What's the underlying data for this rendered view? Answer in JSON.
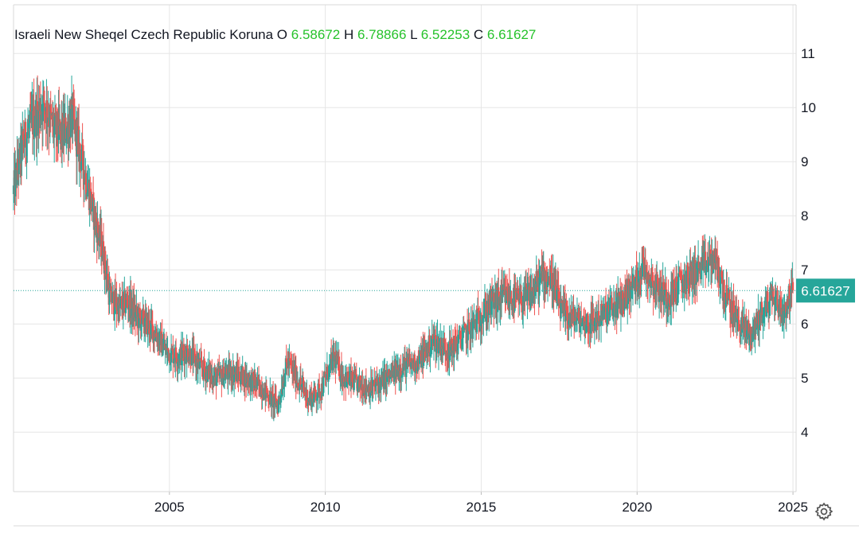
{
  "legend": {
    "symbol": "Israeli New Sheqel Czech Republic Koruna",
    "o_label": "O",
    "o_value": "6.58672",
    "h_label": "H",
    "h_value": "6.78866",
    "l_label": "L",
    "l_value": "6.52253",
    "c_label": "C",
    "c_value": "6.61627"
  },
  "last_price_label": "6.61627",
  "colors": {
    "up": "#26a69a",
    "down": "#ef5350",
    "grid": "#e6e6e6",
    "axis_text": "#131722",
    "ohlc_values": "#26c22b",
    "price_tag_bg": "#26a69a",
    "price_line": "#26a69a"
  },
  "settings_icon": "gear-icon",
  "chart_data": {
    "type": "candlestick",
    "title": "",
    "xlabel": "",
    "ylabel": "",
    "x_range": [
      2000.0,
      2025.1
    ],
    "ylim": [
      2.9,
      11.9
    ],
    "y_ticks": [
      "4",
      "5",
      "6",
      "7",
      "8",
      "9",
      "10",
      "11"
    ],
    "x_ticks": [
      "2005",
      "2010",
      "2015",
      "2020",
      "2025"
    ],
    "grid": true,
    "last_close": 6.61627,
    "path": [
      [
        2000.0,
        8.4
      ],
      [
        2000.3,
        9.3
      ],
      [
        2000.6,
        9.7
      ],
      [
        2001.0,
        10.1
      ],
      [
        2001.3,
        9.6
      ],
      [
        2001.6,
        9.5
      ],
      [
        2001.9,
        9.8
      ],
      [
        2002.3,
        8.8
      ],
      [
        2002.6,
        8.0
      ],
      [
        2002.9,
        7.3
      ],
      [
        2003.1,
        6.5
      ],
      [
        2003.4,
        6.3
      ],
      [
        2003.7,
        6.4
      ],
      [
        2004.0,
        6.1
      ],
      [
        2004.3,
        6.0
      ],
      [
        2004.6,
        5.8
      ],
      [
        2004.9,
        5.5
      ],
      [
        2005.3,
        5.4
      ],
      [
        2005.6,
        5.5
      ],
      [
        2006.0,
        5.2
      ],
      [
        2006.5,
        5.0
      ],
      [
        2007.0,
        5.1
      ],
      [
        2007.5,
        5.0
      ],
      [
        2008.0,
        4.8
      ],
      [
        2008.3,
        4.6
      ],
      [
        2008.5,
        4.5
      ],
      [
        2008.8,
        5.3
      ],
      [
        2009.1,
        5.0
      ],
      [
        2009.5,
        4.6
      ],
      [
        2009.9,
        4.8
      ],
      [
        2010.3,
        5.4
      ],
      [
        2010.6,
        5.0
      ],
      [
        2011.0,
        4.9
      ],
      [
        2011.5,
        4.8
      ],
      [
        2012.0,
        5.0
      ],
      [
        2012.5,
        5.2
      ],
      [
        2013.0,
        5.3
      ],
      [
        2013.5,
        5.7
      ],
      [
        2014.0,
        5.5
      ],
      [
        2014.5,
        5.8
      ],
      [
        2014.8,
        6.0
      ],
      [
        2015.1,
        6.2
      ],
      [
        2015.4,
        6.4
      ],
      [
        2015.8,
        6.5
      ],
      [
        2016.3,
        6.4
      ],
      [
        2016.7,
        6.6
      ],
      [
        2017.0,
        6.9
      ],
      [
        2017.3,
        6.8
      ],
      [
        2017.6,
        6.2
      ],
      [
        2018.0,
        6.1
      ],
      [
        2018.5,
        6.0
      ],
      [
        2019.0,
        6.2
      ],
      [
        2019.5,
        6.4
      ],
      [
        2020.0,
        6.8
      ],
      [
        2020.2,
        7.1
      ],
      [
        2020.6,
        6.7
      ],
      [
        2021.0,
        6.5
      ],
      [
        2021.5,
        6.8
      ],
      [
        2022.0,
        7.0
      ],
      [
        2022.5,
        7.2
      ],
      [
        2022.8,
        6.6
      ],
      [
        2023.0,
        6.3
      ],
      [
        2023.3,
        6.0
      ],
      [
        2023.7,
        5.8
      ],
      [
        2024.0,
        6.2
      ],
      [
        2024.4,
        6.5
      ],
      [
        2024.7,
        6.2
      ],
      [
        2025.0,
        6.62
      ]
    ]
  }
}
